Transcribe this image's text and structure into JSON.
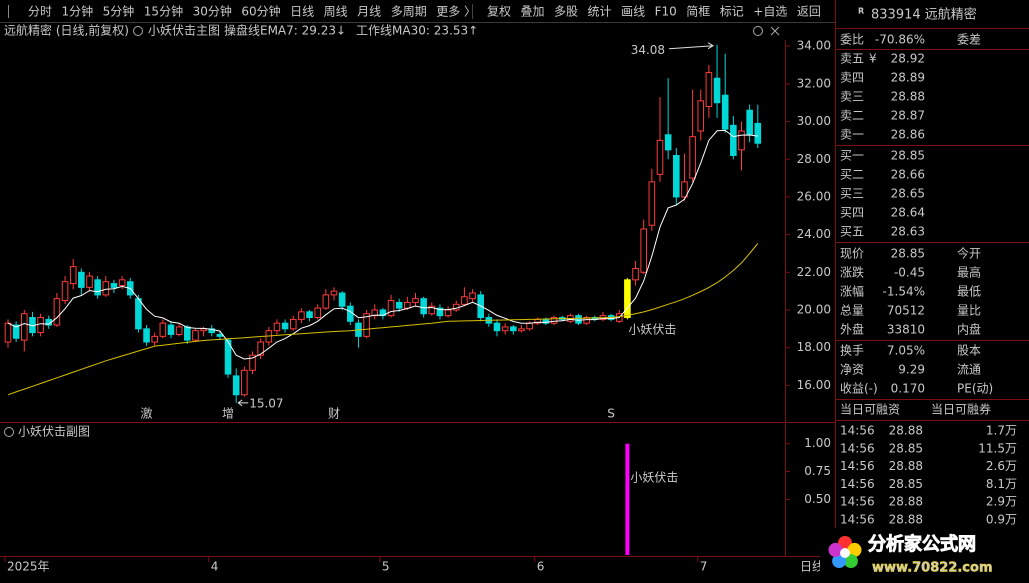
{
  "toolbar": {
    "left": [
      "分时",
      "1分钟",
      "5分钟",
      "15分钟",
      "30分钟",
      "60分钟",
      "日线",
      "周线",
      "月线",
      "多周期",
      "更多 〉"
    ],
    "active": 6,
    "right": [
      "复权",
      "叠加",
      "多股",
      "统计",
      "画线",
      "F10",
      "简框",
      "标记",
      "+自选",
      "返回"
    ]
  },
  "info": {
    "stock": "远航精密 (日线,前复权)",
    "indicator": "小妖伏击主图"
  },
  "chart_data": {
    "type": "candlestick",
    "up_color": "#ff3b3b",
    "down_color": "#00d8d8",
    "signal_color": "#ffff00",
    "ylim": [
      14.16,
      34.33
    ],
    "yticks": [
      {
        "value": 16,
        "label": "16.00"
      },
      {
        "value": 18,
        "label": "18.00"
      },
      {
        "value": 20,
        "label": "20.00"
      },
      {
        "value": 22,
        "label": "22.00"
      },
      {
        "value": 24,
        "label": "24.00"
      },
      {
        "value": 26,
        "label": "26.00"
      },
      {
        "value": 28,
        "label": "28.00"
      },
      {
        "value": 30,
        "label": "30.00"
      },
      {
        "value": 32,
        "label": "32.00"
      },
      {
        "value": 34,
        "label": "34.00"
      }
    ],
    "x_labels": [
      {
        "label": "2025年",
        "index": 0
      },
      {
        "label": "4",
        "index": 25
      },
      {
        "label": "5",
        "index": 46
      },
      {
        "label": "6",
        "index": 65
      },
      {
        "label": "7",
        "index": 85
      }
    ],
    "period_label": "日线",
    "max_label": "34.08",
    "min_label": "15.07",
    "signal_label": "小妖伏击",
    "events": [
      {
        "label": "激",
        "index": 17,
        "color": "#ff7030"
      },
      {
        "label": "增",
        "index": 27,
        "color": "#ff4040"
      },
      {
        "label": "财",
        "index": 40,
        "color": "#5a8cff"
      },
      {
        "label": "S",
        "index": 74,
        "color": "#ff3030"
      }
    ],
    "ohlc": [
      [
        18.3,
        19.5,
        18.0,
        19.3
      ],
      [
        19.2,
        19.4,
        18.3,
        18.5
      ],
      [
        18.4,
        20.0,
        17.8,
        19.8
      ],
      [
        19.6,
        19.9,
        18.6,
        18.8
      ],
      [
        18.8,
        19.8,
        18.6,
        19.6
      ],
      [
        19.5,
        19.7,
        19.0,
        19.2
      ],
      [
        19.2,
        20.9,
        19.1,
        20.6
      ],
      [
        20.5,
        21.8,
        20.3,
        21.5
      ],
      [
        21.4,
        22.7,
        21.1,
        22.3
      ],
      [
        22.0,
        22.2,
        20.8,
        21.2
      ],
      [
        21.2,
        22.0,
        21.0,
        21.8
      ],
      [
        21.6,
        21.8,
        20.6,
        20.8
      ],
      [
        20.8,
        21.8,
        20.7,
        21.5
      ],
      [
        21.4,
        21.6,
        20.9,
        21.2
      ],
      [
        21.3,
        21.8,
        21.1,
        21.6
      ],
      [
        21.5,
        21.7,
        20.6,
        20.8
      ],
      [
        20.6,
        20.8,
        18.8,
        19.0
      ],
      [
        19.0,
        19.2,
        18.1,
        18.3
      ],
      [
        18.3,
        18.8,
        18.1,
        18.6
      ],
      [
        18.6,
        19.5,
        18.5,
        19.3
      ],
      [
        19.2,
        19.4,
        18.5,
        18.7
      ],
      [
        18.7,
        19.3,
        18.6,
        19.1
      ],
      [
        19.1,
        19.2,
        18.2,
        18.4
      ],
      [
        18.4,
        19.0,
        18.3,
        18.9
      ],
      [
        18.9,
        19.1,
        18.6,
        19.0
      ],
      [
        19.0,
        19.2,
        18.6,
        18.8
      ],
      [
        18.7,
        18.9,
        18.4,
        18.6
      ],
      [
        18.4,
        18.5,
        16.4,
        16.6
      ],
      [
        16.5,
        16.9,
        15.07,
        15.5
      ],
      [
        15.5,
        17.0,
        15.4,
        16.8
      ],
      [
        16.8,
        17.8,
        16.6,
        17.6
      ],
      [
        17.6,
        18.5,
        17.4,
        18.3
      ],
      [
        18.3,
        19.1,
        18.1,
        18.9
      ],
      [
        18.9,
        19.5,
        18.7,
        19.3
      ],
      [
        19.3,
        19.5,
        18.8,
        19.0
      ],
      [
        19.0,
        19.7,
        18.9,
        19.5
      ],
      [
        19.5,
        20.1,
        19.3,
        19.9
      ],
      [
        19.9,
        20.0,
        19.4,
        19.6
      ],
      [
        19.6,
        20.3,
        19.5,
        20.1
      ],
      [
        20.1,
        21.1,
        20.0,
        20.8
      ],
      [
        20.8,
        21.2,
        20.5,
        21.0
      ],
      [
        20.9,
        21.0,
        20.0,
        20.2
      ],
      [
        20.2,
        20.4,
        19.2,
        19.4
      ],
      [
        19.3,
        19.5,
        18.0,
        18.6
      ],
      [
        18.6,
        20.0,
        18.5,
        19.8
      ],
      [
        19.7,
        20.3,
        19.5,
        20.0
      ],
      [
        20.0,
        20.1,
        19.5,
        19.7
      ],
      [
        19.7,
        20.8,
        19.6,
        20.5
      ],
      [
        20.4,
        20.6,
        19.9,
        20.1
      ],
      [
        20.1,
        20.7,
        20.0,
        20.4
      ],
      [
        20.4,
        20.9,
        20.2,
        20.6
      ],
      [
        20.6,
        20.7,
        19.6,
        19.8
      ],
      [
        19.8,
        20.4,
        19.7,
        20.2
      ],
      [
        20.1,
        20.3,
        19.5,
        19.7
      ],
      [
        19.7,
        20.2,
        19.6,
        20.0
      ],
      [
        20.0,
        20.5,
        19.9,
        20.3
      ],
      [
        20.3,
        21.2,
        20.2,
        20.7
      ],
      [
        20.6,
        21.1,
        20.4,
        20.9
      ],
      [
        20.8,
        21.0,
        19.4,
        19.6
      ],
      [
        19.6,
        19.8,
        19.1,
        19.3
      ],
      [
        19.3,
        19.5,
        18.6,
        18.9
      ],
      [
        18.9,
        19.3,
        18.7,
        19.1
      ],
      [
        19.1,
        19.2,
        18.7,
        18.9
      ],
      [
        18.9,
        19.2,
        18.8,
        19.0
      ],
      [
        19.0,
        19.4,
        18.9,
        19.3
      ],
      [
        19.3,
        19.6,
        19.2,
        19.5
      ],
      [
        19.5,
        19.6,
        19.2,
        19.3
      ],
      [
        19.3,
        19.7,
        19.2,
        19.6
      ],
      [
        19.6,
        19.7,
        19.4,
        19.5
      ],
      [
        19.4,
        19.8,
        19.3,
        19.7
      ],
      [
        19.7,
        19.8,
        19.2,
        19.3
      ],
      [
        19.3,
        19.7,
        19.2,
        19.6
      ],
      [
        19.6,
        19.7,
        19.4,
        19.5
      ],
      [
        19.5,
        19.9,
        19.4,
        19.7
      ],
      [
        19.7,
        19.8,
        19.4,
        19.5
      ],
      [
        19.4,
        20.0,
        19.3,
        19.8
      ],
      [
        19.6,
        21.7,
        19.5,
        21.6
      ],
      [
        21.6,
        22.6,
        21.3,
        22.2
      ],
      [
        22.0,
        24.8,
        21.9,
        24.3
      ],
      [
        24.5,
        27.5,
        24.2,
        26.8
      ],
      [
        27.2,
        31.3,
        26.8,
        29.0
      ],
      [
        29.3,
        32.3,
        28.0,
        28.5
      ],
      [
        28.2,
        28.6,
        25.6,
        26.0
      ],
      [
        26.0,
        28.3,
        25.8,
        26.8
      ],
      [
        27.0,
        31.7,
        26.8,
        29.2
      ],
      [
        29.5,
        31.7,
        29.0,
        31.1
      ],
      [
        30.8,
        33.0,
        30.2,
        32.6
      ],
      [
        32.3,
        34.08,
        30.2,
        31.0
      ],
      [
        31.4,
        33.6,
        29.4,
        29.6
      ],
      [
        29.8,
        30.3,
        28.0,
        28.2
      ],
      [
        28.5,
        30.0,
        27.4,
        29.5
      ],
      [
        30.6,
        30.9,
        28.9,
        29.3
      ],
      [
        29.9,
        30.9,
        28.6,
        28.85
      ]
    ],
    "series": [
      {
        "label": "操盘线EMA7: 29.23↓",
        "color": "#ffffff",
        "values": [
          19.3,
          19.1,
          19.28,
          19.16,
          19.27,
          19.25,
          19.59,
          20.07,
          20.63,
          20.77,
          21.03,
          20.97,
          21.1,
          21.13,
          21.25,
          21.14,
          20.6,
          20.03,
          19.67,
          19.58,
          19.36,
          19.3,
          19.07,
          19.03,
          19.02,
          18.97,
          18.88,
          18.31,
          17.6,
          17.4,
          17.45,
          17.66,
          17.97,
          18.3,
          18.48,
          18.74,
          19.03,
          19.17,
          19.4,
          19.75,
          20.06,
          20.1,
          19.92,
          19.59,
          19.64,
          19.73,
          19.72,
          19.92,
          19.97,
          20.08,
          20.21,
          20.11,
          20.13,
          20.02,
          20.02,
          20.09,
          20.24,
          20.41,
          20.21,
          19.98,
          19.71,
          19.56,
          19.39,
          19.3,
          19.3,
          19.35,
          19.34,
          19.4,
          19.43,
          19.5,
          19.45,
          19.49,
          19.49,
          19.55,
          19.54,
          19.6,
          20.1,
          20.63,
          21.54,
          22.86,
          24.4,
          25.42,
          25.57,
          25.88,
          26.71,
          27.81,
          29.01,
          29.51,
          29.53,
          29.2,
          29.28,
          29.29,
          29.23
        ]
      },
      {
        "label": "工作线MA30: 23.53↑",
        "color": "#d8c000",
        "values": [
          15.5,
          15.65,
          15.8,
          15.95,
          16.1,
          16.25,
          16.4,
          16.55,
          16.7,
          16.85,
          17.0,
          17.15,
          17.3,
          17.43,
          17.56,
          17.69,
          17.82,
          17.95,
          18.08,
          18.13,
          18.18,
          18.23,
          18.28,
          18.33,
          18.38,
          18.41,
          18.44,
          18.47,
          18.5,
          18.53,
          18.56,
          18.59,
          18.62,
          18.65,
          18.68,
          18.71,
          18.74,
          18.77,
          18.8,
          18.83,
          18.86,
          18.88,
          18.9,
          18.94,
          18.98,
          19.02,
          19.06,
          19.1,
          19.14,
          19.18,
          19.22,
          19.26,
          19.3,
          19.35,
          19.4,
          19.41,
          19.42,
          19.43,
          19.44,
          19.45,
          19.46,
          19.47,
          19.48,
          19.49,
          19.5,
          19.51,
          19.52,
          19.53,
          19.54,
          19.55,
          19.56,
          19.57,
          19.58,
          19.59,
          19.6,
          19.65,
          19.72,
          19.8,
          19.9,
          20.02,
          20.16,
          20.3,
          20.44,
          20.6,
          20.78,
          20.98,
          21.2,
          21.45,
          21.75,
          22.1,
          22.5,
          23.0,
          23.53
        ]
      }
    ],
    "sub": {
      "title": "小妖伏击副图",
      "color": "#ff00ff",
      "ylim": [
        0,
        1.15
      ],
      "yticks": [
        {
          "value": 1,
          "label": "1.00"
        },
        0.75,
        {
          "value": 0.5,
          "label": "0.50"
        }
      ],
      "signals": [
        {
          "index": 76,
          "value": 1
        }
      ]
    }
  },
  "quote": {
    "badge": "R",
    "title": "833914 远航精密",
    "ratio": {
      "label": "委比",
      "value": "-70.86%",
      "label2": "委差",
      "color": "#00d000"
    },
    "price_color": "#00d000",
    "asks": [
      {
        "label": "卖五",
        "icon": "¥",
        "price": "28.92"
      },
      {
        "label": "卖四",
        "price": "28.89"
      },
      {
        "label": "卖三",
        "price": "28.88"
      },
      {
        "label": "卖二",
        "price": "28.87"
      },
      {
        "label": "卖一",
        "price": "28.86"
      }
    ],
    "bids": [
      {
        "label": "买一",
        "price": "28.85"
      },
      {
        "label": "买二",
        "price": "28.66"
      },
      {
        "label": "买三",
        "price": "28.65"
      },
      {
        "label": "买四",
        "price": "28.64"
      },
      {
        "label": "买五",
        "price": "28.63"
      }
    ],
    "stats": [
      {
        "label": "现价",
        "value": "28.85",
        "label2": "今开",
        "color": "#00d000"
      },
      {
        "label": "涨跌",
        "value": "-0.45",
        "label2": "最高",
        "color": "#00d000"
      },
      {
        "label": "涨幅",
        "value": "-1.54%",
        "label2": "最低",
        "color": "#00d000"
      },
      {
        "label": "总量",
        "value": "70512",
        "label2": "量比",
        "color": "#e8e800"
      },
      {
        "label": "外盘",
        "value": "33810",
        "label2": "内盘",
        "color": "#ff3b3b"
      },
      {
        "label": "换手",
        "value": "7.05%",
        "label2": "股本",
        "color": "#e0e0e0"
      },
      {
        "label": "净资",
        "value": "9.29",
        "label2": "流通",
        "color": "#e0e0e0"
      },
      {
        "label": "收益(-)",
        "value": "0.170",
        "label2": "PE(动)",
        "color": "#e0e0e0"
      }
    ],
    "margin": [
      "当日可融资",
      "当日可融券"
    ],
    "trades": [
      {
        "time": "14:56",
        "price": "28.88",
        "volume": "1.7万"
      },
      {
        "time": "14:56",
        "price": "28.85",
        "volume": "11.5万"
      },
      {
        "time": "14:56",
        "price": "28.88",
        "volume": "2.6万"
      },
      {
        "time": "14:56",
        "price": "28.85",
        "volume": "8.1万"
      },
      {
        "time": "14:56",
        "price": "28.88",
        "volume": "2.9万"
      },
      {
        "time": "14:56",
        "price": "28.88",
        "volume": "0.9万"
      }
    ]
  },
  "watermark": {
    "name": "分析家公式网",
    "url": "www.70822.com"
  }
}
